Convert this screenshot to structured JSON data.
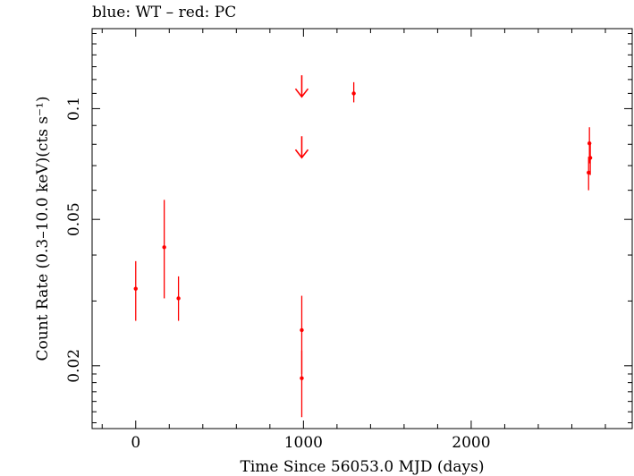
{
  "chart_data": {
    "type": "scatter",
    "title": "blue: WT – red: PC",
    "xlabel": "Time Since 56053.0 MJD (days)",
    "ylabel": "Count Rate (0.3–10.0 keV)(cts s⁻¹)",
    "xlim": [
      -260,
      2960
    ],
    "ylim": [
      0.0135,
      0.165
    ],
    "yscale": "log",
    "x_ticks": [
      {
        "value": 0,
        "label": "0"
      },
      {
        "value": 1000,
        "label": "1000"
      },
      {
        "value": 2000,
        "label": "2000"
      }
    ],
    "y_ticks": [
      {
        "value": 0.02,
        "label": "0.02"
      },
      {
        "value": 0.05,
        "label": "0.05"
      },
      {
        "value": 0.1,
        "label": "0.1"
      }
    ],
    "grid": false,
    "series": [
      {
        "name": "PC",
        "color": "#ff0000",
        "points": [
          {
            "x": 0,
            "y": 0.0324,
            "ylo": 0.0265,
            "yhi": 0.0385
          },
          {
            "x": 170,
            "y": 0.042,
            "ylo": 0.0305,
            "yhi": 0.0565
          },
          {
            "x": 255,
            "y": 0.0305,
            "ylo": 0.0265,
            "yhi": 0.035
          },
          {
            "x": 990,
            "y": 0.025,
            "ylo": 0.019,
            "yhi": 0.031
          },
          {
            "x": 990,
            "y": 0.0185,
            "ylo": 0.0145,
            "yhi": 0.022
          },
          {
            "x": 1300,
            "y": 0.11,
            "ylo": 0.104,
            "yhi": 0.118
          },
          {
            "x": 2705,
            "y": 0.0805,
            "ylo": 0.071,
            "yhi": 0.089
          },
          {
            "x": 2710,
            "y": 0.0735,
            "ylo": 0.066,
            "yhi": 0.081
          },
          {
            "x": 2700,
            "y": 0.067,
            "ylo": 0.06,
            "yhi": 0.074
          }
        ],
        "upper_limits": [
          {
            "x": 990,
            "y": 0.112
          },
          {
            "x": 990,
            "y": 0.0765
          }
        ]
      }
    ]
  }
}
